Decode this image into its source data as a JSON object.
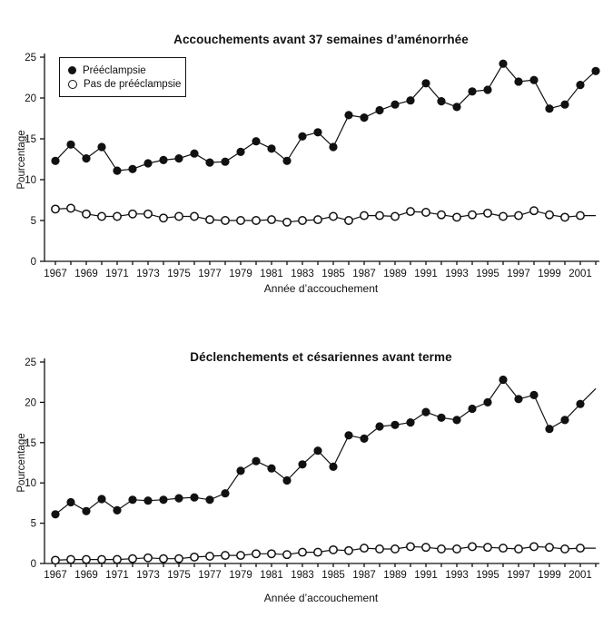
{
  "figure": {
    "ylabel": "Pourcentage",
    "xlabel": "Année d’accouchement"
  },
  "legend": {
    "items": [
      {
        "label": "Prééclampsie",
        "marker": "filled"
      },
      {
        "label": "Pas de prééclampsie",
        "marker": "open"
      }
    ]
  },
  "colors": {
    "line": "#111111",
    "marker_fill": "#111111",
    "marker_open_fill": "#ffffff",
    "background": "#ffffff"
  },
  "chart_data": [
    {
      "type": "line",
      "title": "Accouchements avant 37 semaines d’aménorrhée",
      "xlabel": "Année d’accouchement",
      "ylabel": "Pourcentage",
      "ylim": [
        0,
        25
      ],
      "yticks": [
        0,
        5,
        10,
        15,
        20,
        25
      ],
      "x": [
        1967,
        1968,
        1969,
        1970,
        1971,
        1972,
        1973,
        1974,
        1975,
        1976,
        1977,
        1978,
        1979,
        1980,
        1981,
        1982,
        1983,
        1984,
        1985,
        1986,
        1987,
        1988,
        1989,
        1990,
        1991,
        1992,
        1993,
        1994,
        1995,
        1996,
        1997,
        1998,
        1999,
        2000,
        2001,
        2002
      ],
      "xtick_labels": [
        "1967",
        "1969",
        "1971",
        "1973",
        "1975",
        "1977",
        "1979",
        "1981",
        "1983",
        "1985",
        "1987",
        "1989",
        "1991",
        "1993",
        "1995",
        "1997",
        "1999",
        "2001"
      ],
      "legend_position": "upper-left",
      "grid": false,
      "series": [
        {
          "name": "Prééclampsie",
          "marker": "filled",
          "marker_last": true,
          "values": [
            12.3,
            14.3,
            12.6,
            14.0,
            11.1,
            11.3,
            12.0,
            12.4,
            12.6,
            13.2,
            12.1,
            12.2,
            13.4,
            14.7,
            13.8,
            12.3,
            15.3,
            15.8,
            14.0,
            17.9,
            17.6,
            18.5,
            19.2,
            19.7,
            21.8,
            19.6,
            18.9,
            20.8,
            21.0,
            24.2,
            22.0,
            22.2,
            18.7,
            19.2,
            21.6,
            23.3
          ]
        },
        {
          "name": "Pas de prééclampsie",
          "marker": "open",
          "marker_last": false,
          "values": [
            6.4,
            6.5,
            5.8,
            5.5,
            5.5,
            5.8,
            5.8,
            5.3,
            5.5,
            5.5,
            5.1,
            5.0,
            5.0,
            5.0,
            5.1,
            4.8,
            5.0,
            5.1,
            5.5,
            5.0,
            5.6,
            5.6,
            5.5,
            6.1,
            6.0,
            5.7,
            5.4,
            5.7,
            5.9,
            5.5,
            5.6,
            6.2,
            5.7,
            5.4,
            5.6,
            5.6
          ]
        }
      ]
    },
    {
      "type": "line",
      "title": "Déclenchements et césariennes avant terme",
      "xlabel": "Année d’accouchement",
      "ylabel": "Pourcentage",
      "ylim": [
        0,
        25
      ],
      "yticks": [
        0,
        5,
        10,
        15,
        20,
        25
      ],
      "x": [
        1967,
        1968,
        1969,
        1970,
        1971,
        1972,
        1973,
        1974,
        1975,
        1976,
        1977,
        1978,
        1979,
        1980,
        1981,
        1982,
        1983,
        1984,
        1985,
        1986,
        1987,
        1988,
        1989,
        1990,
        1991,
        1992,
        1993,
        1994,
        1995,
        1996,
        1997,
        1998,
        1999,
        2000,
        2001,
        2002
      ],
      "xtick_labels": [
        "1967",
        "1969",
        "1971",
        "1973",
        "1975",
        "1977",
        "1979",
        "1981",
        "1983",
        "1985",
        "1987",
        "1989",
        "1991",
        "1993",
        "1995",
        "1997",
        "1999",
        "2001"
      ],
      "legend_position": "none",
      "grid": false,
      "series": [
        {
          "name": "Prééclampsie",
          "marker": "filled",
          "marker_last": false,
          "values": [
            6.1,
            7.6,
            6.5,
            8.0,
            6.6,
            7.9,
            7.8,
            7.9,
            8.1,
            8.2,
            7.9,
            8.7,
            11.5,
            12.7,
            11.8,
            10.3,
            12.3,
            14.0,
            12.0,
            15.9,
            15.5,
            17.0,
            17.2,
            17.5,
            18.8,
            18.1,
            17.8,
            19.2,
            20.0,
            22.8,
            20.4,
            20.9,
            16.7,
            17.8,
            19.8,
            21.7
          ]
        },
        {
          "name": "Pas de prééclampsie",
          "marker": "open",
          "marker_last": false,
          "values": [
            0.4,
            0.5,
            0.5,
            0.5,
            0.5,
            0.6,
            0.7,
            0.6,
            0.6,
            0.8,
            0.9,
            1.0,
            1.0,
            1.2,
            1.2,
            1.1,
            1.4,
            1.4,
            1.7,
            1.6,
            1.9,
            1.8,
            1.8,
            2.1,
            2.0,
            1.8,
            1.8,
            2.1,
            2.0,
            1.9,
            1.8,
            2.1,
            2.0,
            1.8,
            1.9,
            1.9
          ]
        }
      ]
    }
  ]
}
